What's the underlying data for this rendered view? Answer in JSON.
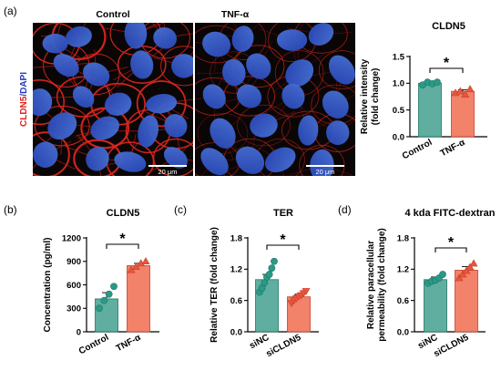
{
  "figure": {
    "panel_labels": {
      "a": "(a)",
      "b": "(b)",
      "c": "(c)",
      "d": "(d)"
    },
    "micrographs": {
      "side_label_red": "CLDN5",
      "side_label_blue": "/DAPI",
      "items": [
        {
          "title": "Control",
          "scale_bar": "20 μm"
        },
        {
          "title": "TNF-α",
          "scale_bar": "20 μm"
        }
      ]
    },
    "colors": {
      "control": "#5fae9f",
      "treated": "#f2826a",
      "control_dark": "#1e7768",
      "treated_dark": "#c8412a"
    }
  },
  "chart_data": [
    {
      "id": "a-chart",
      "type": "bar",
      "title": "CLDN5",
      "ylabel": [
        "Relative intensity",
        "(fold change)"
      ],
      "categories": [
        "Control",
        "TNF-α"
      ],
      "values": [
        1.0,
        0.85
      ],
      "errors": [
        0.02,
        0.03
      ],
      "points": [
        [
          0.97,
          1.02,
          0.99,
          1.02
        ],
        [
          0.82,
          0.85,
          0.79,
          0.89
        ]
      ],
      "markers": [
        "circle",
        "triangle"
      ],
      "ylim": [
        0,
        1.5
      ],
      "yticks": [
        0.0,
        0.5,
        1.0,
        1.5
      ],
      "tick_labels": [
        "0.0",
        "0.5",
        "1.0",
        "1.5"
      ],
      "significance": "*"
    },
    {
      "id": "b-chart",
      "type": "bar",
      "title": "CLDN5",
      "ylabel": [
        "Concentration (pg/ml)"
      ],
      "categories": [
        "Control",
        "TNF-α"
      ],
      "values": [
        420,
        845
      ],
      "errors": [
        80,
        30
      ],
      "points": [
        [
          300,
          400,
          480,
          580
        ],
        [
          790,
          830,
          875,
          900
        ]
      ],
      "markers": [
        "circle",
        "triangle"
      ],
      "ylim": [
        0,
        1200
      ],
      "yticks": [
        0,
        300,
        600,
        900,
        1200
      ],
      "tick_labels": [
        "0",
        "300",
        "600",
        "900",
        "1200"
      ],
      "significance": "*"
    },
    {
      "id": "c-chart",
      "type": "bar",
      "title": "TER",
      "ylabel": [
        "Relative TER (fold change)"
      ],
      "categories": [
        "siNC",
        "siCLDN5"
      ],
      "values": [
        1.0,
        0.67
      ],
      "errors": [
        0.1,
        0.04
      ],
      "points": [
        [
          0.76,
          0.84,
          0.94,
          1.05,
          1.1,
          1.22,
          1.35
        ],
        [
          0.55,
          0.6,
          0.64,
          0.68,
          0.7,
          0.74,
          0.78
        ]
      ],
      "markers": [
        "circle",
        "triangle-down"
      ],
      "ylim": [
        0,
        1.8
      ],
      "yticks": [
        0.0,
        0.6,
        1.2,
        1.8
      ],
      "tick_labels": [
        "0.0",
        "0.6",
        "1.2",
        "1.8"
      ],
      "significance": "*"
    },
    {
      "id": "d-chart",
      "type": "bar",
      "title": "4 kda FITC-dextran",
      "ylabel": [
        "Relative paracellular",
        "permeability (fold change)"
      ],
      "categories": [
        "siNC",
        "siCLDN5"
      ],
      "values": [
        1.0,
        1.18
      ],
      "errors": [
        0.05,
        0.07
      ],
      "points": [
        [
          0.93,
          0.97,
          0.99,
          1.03,
          1.1
        ],
        [
          1.03,
          1.1,
          1.17,
          1.24,
          1.31
        ]
      ],
      "markers": [
        "circle",
        "triangle"
      ],
      "ylim": [
        0,
        1.8
      ],
      "yticks": [
        0.0,
        0.6,
        1.2,
        1.8
      ],
      "tick_labels": [
        "0.0",
        "0.6",
        "1.2",
        "1.8"
      ],
      "significance": "*"
    }
  ]
}
